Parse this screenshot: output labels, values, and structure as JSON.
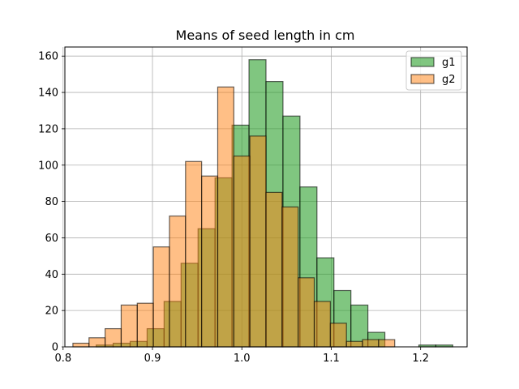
{
  "chart_data": {
    "type": "bar",
    "title": "Means of seed length in cm",
    "xlabel": "",
    "ylabel": "",
    "xlim": [
      0.802,
      1.252
    ],
    "ylim": [
      0,
      165
    ],
    "xticks": [
      0.8,
      0.9,
      1.0,
      1.1,
      1.2
    ],
    "xtick_labels": [
      "0.8",
      "0.9",
      "1.0",
      "1.1",
      "1.2"
    ],
    "yticks": [
      0,
      20,
      40,
      60,
      80,
      100,
      120,
      140,
      160
    ],
    "ytick_labels": [
      "0",
      "20",
      "40",
      "60",
      "80",
      "100",
      "120",
      "140",
      "160"
    ],
    "grid": true,
    "legend_position": "top-right",
    "series": [
      {
        "name": "g1",
        "color": "#2ca02c",
        "opacity": 0.6,
        "bins": [
          {
            "x0": 0.837,
            "x1": 0.856,
            "count": 1
          },
          {
            "x0": 0.856,
            "x1": 0.875,
            "count": 2
          },
          {
            "x0": 0.875,
            "x1": 0.894,
            "count": 3
          },
          {
            "x0": 0.894,
            "x1": 0.913,
            "count": 10
          },
          {
            "x0": 0.913,
            "x1": 0.932,
            "count": 25
          },
          {
            "x0": 0.932,
            "x1": 0.951,
            "count": 46
          },
          {
            "x0": 0.951,
            "x1": 0.97,
            "count": 65
          },
          {
            "x0": 0.97,
            "x1": 0.989,
            "count": 93
          },
          {
            "x0": 0.989,
            "x1": 1.008,
            "count": 122
          },
          {
            "x0": 1.008,
            "x1": 1.027,
            "count": 158
          },
          {
            "x0": 1.027,
            "x1": 1.046,
            "count": 146
          },
          {
            "x0": 1.046,
            "x1": 1.065,
            "count": 127
          },
          {
            "x0": 1.065,
            "x1": 1.084,
            "count": 88
          },
          {
            "x0": 1.084,
            "x1": 1.103,
            "count": 49
          },
          {
            "x0": 1.103,
            "x1": 1.122,
            "count": 31
          },
          {
            "x0": 1.122,
            "x1": 1.141,
            "count": 23
          },
          {
            "x0": 1.141,
            "x1": 1.16,
            "count": 8
          },
          {
            "x0": 1.16,
            "x1": 1.179,
            "count": 0
          },
          {
            "x0": 1.179,
            "x1": 1.198,
            "count": 0
          },
          {
            "x0": 1.198,
            "x1": 1.217,
            "count": 1
          },
          {
            "x0": 1.217,
            "x1": 1.236,
            "count": 1
          }
        ]
      },
      {
        "name": "g2",
        "color": "#ff7f0e",
        "opacity": 0.5,
        "bins": [
          {
            "x0": 0.811,
            "x1": 0.829,
            "count": 2
          },
          {
            "x0": 0.829,
            "x1": 0.847,
            "count": 5
          },
          {
            "x0": 0.847,
            "x1": 0.865,
            "count": 10
          },
          {
            "x0": 0.865,
            "x1": 0.883,
            "count": 23
          },
          {
            "x0": 0.883,
            "x1": 0.901,
            "count": 24
          },
          {
            "x0": 0.901,
            "x1": 0.919,
            "count": 55
          },
          {
            "x0": 0.919,
            "x1": 0.937,
            "count": 72
          },
          {
            "x0": 0.937,
            "x1": 0.955,
            "count": 102
          },
          {
            "x0": 0.955,
            "x1": 0.973,
            "count": 94
          },
          {
            "x0": 0.973,
            "x1": 0.991,
            "count": 143
          },
          {
            "x0": 0.991,
            "x1": 1.009,
            "count": 105
          },
          {
            "x0": 1.009,
            "x1": 1.027,
            "count": 116
          },
          {
            "x0": 1.027,
            "x1": 1.045,
            "count": 85
          },
          {
            "x0": 1.045,
            "x1": 1.063,
            "count": 77
          },
          {
            "x0": 1.063,
            "x1": 1.081,
            "count": 38
          },
          {
            "x0": 1.081,
            "x1": 1.099,
            "count": 25
          },
          {
            "x0": 1.099,
            "x1": 1.117,
            "count": 13
          },
          {
            "x0": 1.117,
            "x1": 1.135,
            "count": 3
          },
          {
            "x0": 1.135,
            "x1": 1.153,
            "count": 4
          },
          {
            "x0": 1.153,
            "x1": 1.171,
            "count": 4
          }
        ]
      }
    ]
  }
}
